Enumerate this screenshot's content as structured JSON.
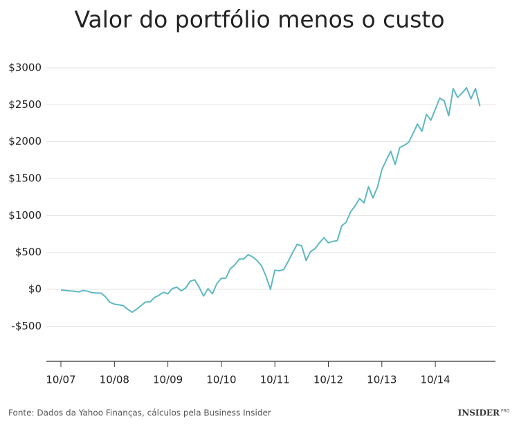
{
  "chart_data": {
    "type": "line",
    "title": "Valor do portfólio menos o custo",
    "categories": [
      "10/07",
      null,
      null,
      null,
      null,
      null,
      null,
      null,
      null,
      null,
      null,
      null,
      "10/08",
      null,
      null,
      null,
      null,
      null,
      null,
      null,
      null,
      null,
      null,
      null,
      "10/09",
      null,
      null,
      null,
      null,
      null,
      null,
      null,
      null,
      null,
      null,
      null,
      "10/10",
      null,
      null,
      null,
      null,
      null,
      null,
      null,
      null,
      null,
      null,
      null,
      "10/11",
      null,
      null,
      null,
      null,
      null,
      null,
      null,
      null,
      null,
      null,
      null,
      "10/12",
      null,
      null,
      null,
      null,
      null,
      null,
      null,
      null,
      null,
      null,
      null,
      "10/13",
      null,
      null,
      null,
      null,
      null,
      null,
      null,
      null,
      null,
      null,
      null,
      "10/14",
      null,
      null,
      null,
      null,
      null,
      null,
      null,
      null,
      null,
      null
    ],
    "values": [
      -10,
      -15,
      -20,
      -25,
      -35,
      -15,
      -25,
      -45,
      -50,
      -50,
      -100,
      -175,
      -200,
      -210,
      -220,
      -270,
      -310,
      -270,
      -220,
      -170,
      -170,
      -110,
      -80,
      -40,
      -60,
      10,
      30,
      -20,
      20,
      110,
      130,
      30,
      -90,
      10,
      -60,
      80,
      150,
      150,
      280,
      330,
      410,
      410,
      470,
      440,
      390,
      320,
      180,
      0,
      260,
      250,
      270,
      380,
      500,
      610,
      590,
      390,
      510,
      550,
      630,
      700,
      630,
      650,
      660,
      860,
      910,
      1050,
      1130,
      1230,
      1170,
      1390,
      1240,
      1380,
      1620,
      1750,
      1870,
      1690,
      1920,
      1950,
      1990,
      2110,
      2240,
      2140,
      2370,
      2290,
      2440,
      2590,
      2550,
      2350,
      2720,
      2600,
      2660,
      2730,
      2580,
      2720,
      2480
    ],
    "color": "#5db8c2",
    "ylim": [
      -1000,
      3000
    ],
    "yticks": [
      {
        "value": -500,
        "label": "-$500"
      },
      {
        "value": 0,
        "label": "$0"
      },
      {
        "value": 500,
        "label": "$500"
      },
      {
        "value": 1000,
        "label": "$1000"
      },
      {
        "value": 1500,
        "label": "$1500"
      },
      {
        "value": 2000,
        "label": "$2000"
      },
      {
        "value": 2500,
        "label": "$2500"
      },
      {
        "value": 3000,
        "label": "$3000"
      }
    ],
    "grid": true
  },
  "footer": {
    "source": "Fonte: Dados da Yahoo Finanças, cálculos pela Business Insider",
    "logo": "INSIDER",
    "logo_tag": "PRO"
  }
}
